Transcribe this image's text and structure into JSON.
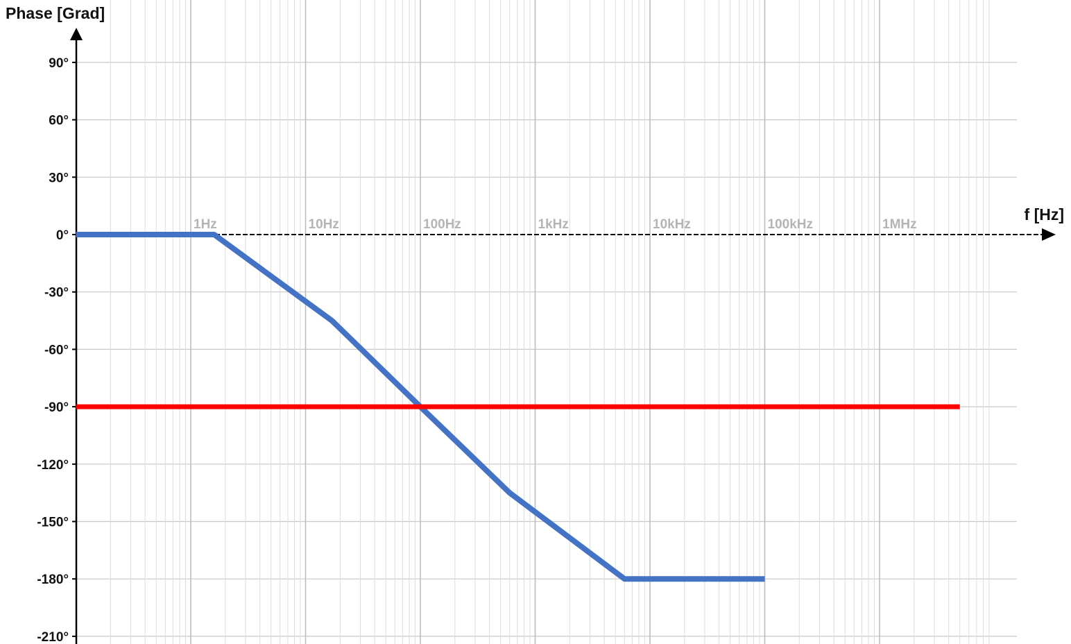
{
  "chart_data": {
    "type": "line",
    "ylabel": "Phase [Grad]",
    "xlabel": "f [Hz]",
    "x_scale": "log",
    "xlim": [
      0.05,
      6000000
    ],
    "ylim": [
      -210,
      90
    ],
    "grid": true,
    "x_ticks": [
      {
        "value": 1,
        "label": "1Hz"
      },
      {
        "value": 10,
        "label": "10Hz"
      },
      {
        "value": 100,
        "label": "100Hz"
      },
      {
        "value": 1000,
        "label": "1kHz"
      },
      {
        "value": 10000,
        "label": "10kHz"
      },
      {
        "value": 100000,
        "label": "100kHz"
      },
      {
        "value": 1000000,
        "label": "1MHz"
      }
    ],
    "y_ticks": [
      {
        "value": 90,
        "label": "90°"
      },
      {
        "value": 60,
        "label": "60°"
      },
      {
        "value": 30,
        "label": "30°"
      },
      {
        "value": 0,
        "label": "0°"
      },
      {
        "value": -30,
        "label": "-30°"
      },
      {
        "value": -60,
        "label": "-60°"
      },
      {
        "value": -90,
        "label": "-90°"
      },
      {
        "value": -120,
        "label": "-120°"
      },
      {
        "value": -150,
        "label": "-150°"
      },
      {
        "value": -180,
        "label": "-180°"
      },
      {
        "value": -210,
        "label": "-210°"
      }
    ],
    "series": [
      {
        "color": "#4472c4",
        "points": [
          [
            0.1,
            0
          ],
          [
            1.6,
            0
          ],
          [
            17,
            -45
          ],
          [
            100,
            -90
          ],
          [
            600,
            -135
          ],
          [
            6000,
            -180
          ],
          [
            100000,
            -180
          ]
        ]
      },
      {
        "color": "#ff0000",
        "points": [
          [
            0.1,
            -90
          ],
          [
            5000000,
            -90
          ]
        ]
      }
    ]
  }
}
